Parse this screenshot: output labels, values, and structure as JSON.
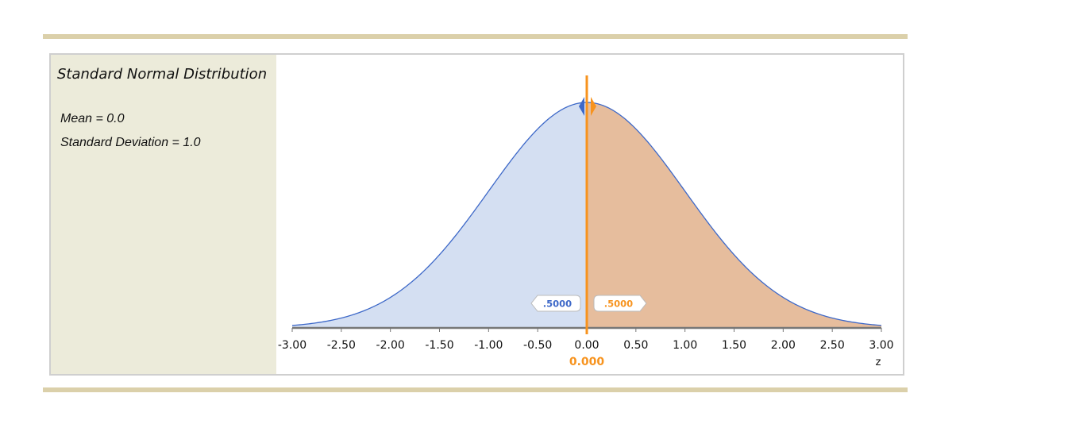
{
  "panel": {
    "title": "Standard Normal Distribution",
    "mean_label": "Mean = 0.0",
    "sd_label": "Standard Deviation = 1.0"
  },
  "colors": {
    "left_fill": "#d4dff2",
    "right_fill": "#e6bd9d",
    "curve": "#3d68c8",
    "cursor": "#f7931e",
    "left_text": "#3d68c8",
    "right_text": "#f7931e",
    "axis": "#777777",
    "rule": "#dbd0aa",
    "panel_bg": "#ecebda"
  },
  "chart_data": {
    "type": "area",
    "distribution": "normal",
    "mean": 0.0,
    "sd": 1.0,
    "xlim": [
      -3.0,
      3.0
    ],
    "xticks": [
      -3.0,
      -2.5,
      -2.0,
      -1.5,
      -1.0,
      -0.5,
      0.0,
      0.5,
      1.0,
      1.5,
      2.0,
      2.5,
      3.0
    ],
    "xtick_labels": [
      "-3.00",
      "-2.50",
      "-2.00",
      "-1.50",
      "-1.00",
      "-0.50",
      "0.00",
      "0.50",
      "1.00",
      "1.50",
      "2.00",
      "2.50",
      "3.00"
    ],
    "xlabel": "z",
    "cutoff": 0.0,
    "cutoff_label": "0.000",
    "left_area": 0.5,
    "right_area": 0.5,
    "left_area_label": ".5000",
    "right_area_label": ".5000",
    "grid": false
  }
}
